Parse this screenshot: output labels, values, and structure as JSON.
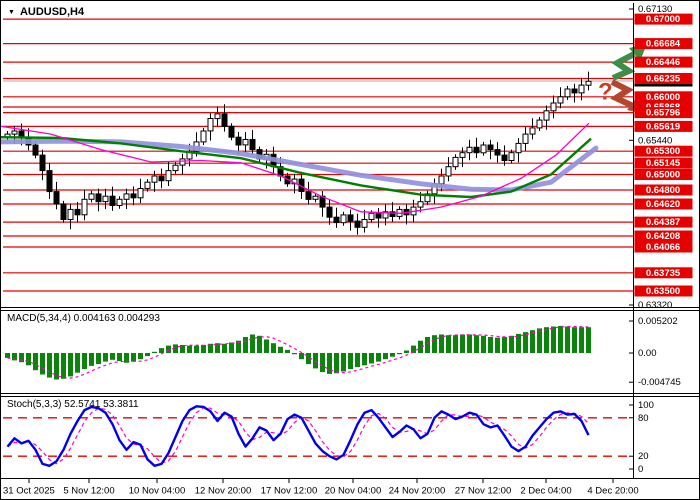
{
  "symbol_label": "AUDUSD,H4",
  "indicators": {
    "macd_label": "MACD(5,34,4) 0.004163 0.004293",
    "stoch_label": "Stoch(5,3,3) 52.5741 53.3811"
  },
  "price_axis": {
    "plain_ticks": [
      "0.67130",
      "0.65440",
      "0.63320"
    ],
    "levels": [
      "0.67000",
      "0.66684",
      "0.66446",
      "0.66235",
      "0.66000",
      "0.65868",
      "0.65796",
      "0.65619",
      "0.65300",
      "0.65145",
      "0.65000",
      "0.64800",
      "0.64620",
      "0.64387",
      "0.64208",
      "0.64066",
      "0.63735",
      "0.63500"
    ],
    "current_price": "0.66203"
  },
  "macd_axis": [
    "0.005202",
    "0.00",
    "-0.004745"
  ],
  "stoch_axis": [
    "100",
    "80",
    "20",
    "0"
  ],
  "time_axis": {
    "labels": [
      "31 Oct 2025",
      "5 Nov 12:00",
      "10 Nov 04:00",
      "12 Nov 20:00",
      "17 Nov 12:00",
      "20 Nov 04:00",
      "24 Nov 20:00",
      "27 Nov 12:00",
      "2 Dec 04:00",
      "4 Dec 20:00"
    ],
    "positions": [
      28,
      88,
      156,
      222,
      288,
      352,
      416,
      482,
      545,
      612
    ]
  },
  "annotations": {
    "question_mark": "?"
  },
  "colors": {
    "level_red": "#e60000",
    "box_red": "#e60000",
    "box_text": "#ffffff",
    "current_box_bg": "#000000",
    "current_line": "#a8a8a8",
    "candle": "#000000",
    "candle_up_fill": "#ffffff",
    "candle_down_fill": "#000000",
    "ma_fast": "#ff00cc",
    "ma_mid": "#008000",
    "ma_slow": "#9191e0",
    "macd_bar": "#0a840a",
    "macd_signal": "#ff00cc",
    "stoch_k": "#0000ee",
    "stoch_d": "#ff00cc",
    "arrow_green": "#3f8d46",
    "arrow_red": "#b2472e",
    "question": "#cc3e1f",
    "axis_text": "#000000"
  },
  "chart_data": {
    "type": "candlestick",
    "symbol": "AUDUSD",
    "timeframe": "H4",
    "title": "AUDUSD,H4",
    "price_range": [
      0.6332,
      0.6713
    ],
    "x_range_labels": [
      "31 Oct 2025",
      "4 Dec 20:00"
    ],
    "closes": [
      0.6552,
      0.6556,
      0.6547,
      0.6538,
      0.6525,
      0.6505,
      0.6478,
      0.6462,
      0.6442,
      0.6455,
      0.6448,
      0.6468,
      0.6475,
      0.6465,
      0.6472,
      0.646,
      0.6468,
      0.6475,
      0.647,
      0.6482,
      0.649,
      0.6498,
      0.6492,
      0.6505,
      0.6512,
      0.652,
      0.653,
      0.6542,
      0.6556,
      0.6572,
      0.6578,
      0.6562,
      0.6548,
      0.6538,
      0.6545,
      0.6532,
      0.652,
      0.6526,
      0.651,
      0.6498,
      0.6488,
      0.6494,
      0.6478,
      0.6468,
      0.6472,
      0.6458,
      0.6445,
      0.6438,
      0.6448,
      0.644,
      0.6432,
      0.6442,
      0.645,
      0.6444,
      0.6452,
      0.6446,
      0.6455,
      0.6448,
      0.6458,
      0.6465,
      0.6475,
      0.6488,
      0.6498,
      0.651,
      0.6522,
      0.6528,
      0.6535,
      0.6528,
      0.6538,
      0.6532,
      0.6525,
      0.6518,
      0.6528,
      0.654,
      0.6552,
      0.656,
      0.657,
      0.6582,
      0.6592,
      0.66,
      0.661,
      0.6605,
      0.6615,
      0.662
    ],
    "ma_fast_magenta": [
      [
        0,
        0.6562
      ],
      [
        50,
        0.6552
      ],
      [
        100,
        0.6532
      ],
      [
        150,
        0.6516
      ],
      [
        200,
        0.6518
      ],
      [
        240,
        0.6515
      ],
      [
        280,
        0.6498
      ],
      [
        320,
        0.6472
      ],
      [
        360,
        0.6452
      ],
      [
        400,
        0.645
      ],
      [
        440,
        0.6458
      ],
      [
        480,
        0.6472
      ],
      [
        520,
        0.6495
      ],
      [
        555,
        0.6525
      ],
      [
        588,
        0.6566
      ]
    ],
    "ma_mid_green": [
      [
        0,
        0.6548
      ],
      [
        60,
        0.6547
      ],
      [
        120,
        0.654
      ],
      [
        180,
        0.653
      ],
      [
        240,
        0.6521
      ],
      [
        300,
        0.6502
      ],
      [
        360,
        0.6486
      ],
      [
        420,
        0.6474
      ],
      [
        470,
        0.6471
      ],
      [
        510,
        0.6478
      ],
      [
        550,
        0.65
      ],
      [
        590,
        0.6546
      ]
    ],
    "ma_slow_periwinkle": [
      [
        0,
        0.6542
      ],
      [
        60,
        0.6543
      ],
      [
        120,
        0.6542
      ],
      [
        180,
        0.6536
      ],
      [
        240,
        0.6527
      ],
      [
        300,
        0.6513
      ],
      [
        360,
        0.6499
      ],
      [
        420,
        0.6488
      ],
      [
        470,
        0.6481
      ],
      [
        510,
        0.648
      ],
      [
        550,
        0.649
      ],
      [
        595,
        0.6534
      ]
    ],
    "macd": {
      "params": "5,34,4",
      "values": [
        0.004163,
        0.004293
      ],
      "y_range": [
        -0.004745,
        0.005202
      ],
      "histogram": [
        -0.0008,
        -0.0012,
        -0.0015,
        -0.002,
        -0.0028,
        -0.0035,
        -0.004,
        -0.0043,
        -0.0042,
        -0.0038,
        -0.0032,
        -0.0026,
        -0.0021,
        -0.0018,
        -0.0014,
        -0.0011,
        -0.0013,
        -0.0016,
        -0.0014,
        -0.001,
        -0.0005,
        0.0002,
        0.0008,
        0.0012,
        0.0014,
        0.0013,
        0.0012,
        0.0012,
        0.0013,
        0.0015,
        0.0016,
        0.0015,
        0.0017,
        0.002,
        0.0026,
        0.003,
        0.0028,
        0.0022,
        0.0016,
        0.001,
        0.0005,
        -0.0002,
        -0.001,
        -0.0018,
        -0.0025,
        -0.0031,
        -0.0034,
        -0.0033,
        -0.003,
        -0.0026,
        -0.0023,
        -0.002,
        -0.0017,
        -0.0014,
        -0.001,
        -0.0006,
        -0.0002,
        0.0004,
        0.0012,
        0.002,
        0.0026,
        0.0029,
        0.003,
        0.0029,
        0.0029,
        0.003,
        0.003,
        0.0029,
        0.0028,
        0.0026,
        0.0025,
        0.0026,
        0.0028,
        0.0031,
        0.0034,
        0.0037,
        0.004,
        0.0042,
        0.0043,
        0.0044,
        0.0043,
        0.0042,
        0.0042,
        0.0042
      ]
    },
    "stochastic": {
      "params": "5,3,3",
      "values": [
        52.5741,
        53.3811
      ],
      "levels": [
        80,
        20
      ],
      "k": [
        35,
        48,
        40,
        44,
        30,
        8,
        5,
        12,
        30,
        55,
        75,
        92,
        97,
        95,
        88,
        70,
        45,
        30,
        42,
        38,
        15,
        5,
        8,
        25,
        50,
        75,
        92,
        98,
        97,
        90,
        75,
        88,
        82,
        55,
        35,
        48,
        65,
        60,
        45,
        55,
        78,
        85,
        80,
        60,
        40,
        28,
        20,
        15,
        22,
        45,
        70,
        88,
        92,
        80,
        65,
        50,
        58,
        68,
        62,
        48,
        55,
        80,
        90,
        85,
        78,
        82,
        88,
        85,
        70,
        65,
        68,
        52,
        35,
        28,
        35,
        52,
        65,
        78,
        88,
        90,
        85,
        86,
        75,
        53
      ]
    }
  }
}
